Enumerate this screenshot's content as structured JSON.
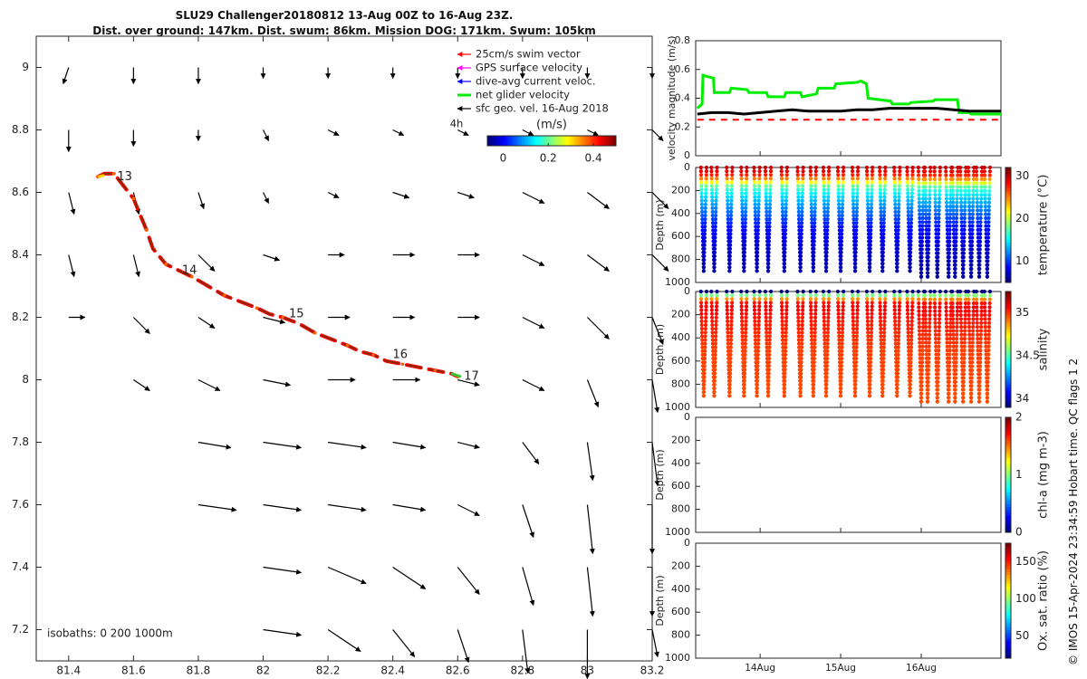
{
  "title": {
    "line1": "SLU29 Challenger20180812 13-Aug 00Z to 16-Aug 23Z.",
    "line2": "Dist. over ground: 147km. Dist. swum: 86km. Mission DOG: 171km. Swum: 105km"
  },
  "credit": "© IMOS 15-Apr-2024 23:34:59 Hobart time. QC flags 1 2",
  "chart_data": [
    {
      "type": "scatter",
      "name": "map",
      "xlim": [
        81.3,
        83.2
      ],
      "ylim": [
        7.1,
        9.1
      ],
      "xticks": [
        81.4,
        81.6,
        81.8,
        82,
        82.2,
        82.4,
        82.6,
        82.8,
        83,
        83.2
      ],
      "xtick_labels": [
        "81.4",
        "81.6",
        "81.8",
        "82",
        "82.2",
        "82.4",
        "82.6",
        "82.8",
        "83",
        "83.2"
      ],
      "yticks": [
        7.2,
        7.4,
        7.6,
        7.8,
        8,
        8.2,
        8.4,
        8.6,
        8.8,
        9
      ],
      "ytick_labels": [
        "7.2",
        "7.4",
        "7.6",
        "7.8",
        "8",
        "8.2",
        "8.4",
        "8.6",
        "8.8",
        "9"
      ],
      "legend": {
        "position": "top-right",
        "entries": [
          {
            "label": "25cm/s swim vector",
            "color": "#ff0000"
          },
          {
            "label": "GPS surface velocity",
            "color": "#ff00ff"
          },
          {
            "label": "dive-avg current veloc.",
            "color": "#0000ff"
          },
          {
            "label": "net glider velocity",
            "color": "#00ee00"
          },
          {
            "label": "sfc geo. vel. 16-Aug 2018",
            "color": "#000000"
          }
        ],
        "scale_note": "4h"
      },
      "colorbar": {
        "label": "(m/s)",
        "ticks": [
          0,
          0.2,
          0.4
        ],
        "tick_labels": [
          "0",
          "0.2",
          "0.4"
        ],
        "range": [
          -0.07,
          0.5
        ]
      },
      "isobaths_label": "isobaths: 0   200  1000m",
      "track": {
        "lon": [
          81.49,
          81.51,
          81.54,
          81.57,
          81.6,
          81.62,
          81.64,
          81.66,
          81.7,
          81.74,
          81.78,
          81.83,
          81.88,
          81.93,
          81.98,
          82.02,
          82.06,
          82.11,
          82.16,
          82.21,
          82.26,
          82.3,
          82.34,
          82.38,
          82.43,
          82.48,
          82.53,
          82.58,
          82.6
        ],
        "lat": [
          8.65,
          8.66,
          8.66,
          8.62,
          8.58,
          8.53,
          8.48,
          8.42,
          8.37,
          8.35,
          8.33,
          8.3,
          8.27,
          8.25,
          8.23,
          8.21,
          8.2,
          8.18,
          8.15,
          8.13,
          8.11,
          8.09,
          8.08,
          8.06,
          8.05,
          8.04,
          8.03,
          8.02,
          8.01
        ]
      },
      "day_markers": [
        {
          "label": "13",
          "lon": 81.53,
          "lat": 8.65
        },
        {
          "label": "14",
          "lon": 81.73,
          "lat": 8.35
        },
        {
          "label": "15",
          "lon": 82.06,
          "lat": 8.21
        },
        {
          "label": "16",
          "lon": 82.38,
          "lat": 8.08
        },
        {
          "label": "17",
          "lon": 82.6,
          "lat": 8.01
        }
      ],
      "current_vectors": {
        "lons": [
          81.4,
          81.6,
          81.8,
          82,
          82.2,
          82.4,
          82.6,
          82.8,
          83,
          83.2
        ],
        "lats": [
          7.2,
          7.4,
          7.6,
          7.8,
          8,
          8.2,
          8.4,
          8.6,
          8.8,
          9
        ],
        "rows": [
          {
            "lat": 9.0,
            "u": [
              -0.01,
              0.0,
              0.0,
              0.0,
              0.0,
              0.0,
              0.0,
              0.0,
              0.0,
              0.0
            ],
            "v": [
              -0.03,
              -0.03,
              -0.03,
              -0.02,
              -0.02,
              -0.02,
              -0.02,
              -0.02,
              -0.02,
              -0.02
            ]
          },
          {
            "lat": 8.8,
            "u": [
              0.0,
              0.0,
              0.0,
              0.01,
              0.02,
              0.02,
              0.02,
              0.02,
              0.02,
              0.02
            ],
            "v": [
              -0.04,
              -0.03,
              -0.02,
              -0.02,
              -0.01,
              -0.01,
              -0.01,
              -0.01,
              -0.01,
              -0.02
            ]
          },
          {
            "lat": 8.6,
            "u": [
              0.01,
              0.01,
              0.01,
              0.01,
              0.02,
              0.03,
              0.03,
              0.04,
              0.04,
              0.03
            ],
            "v": [
              -0.04,
              -0.04,
              -0.03,
              -0.02,
              -0.01,
              -0.01,
              -0.01,
              -0.02,
              -0.03,
              -0.03
            ]
          },
          {
            "lat": 8.4,
            "u": [
              0.01,
              0.01,
              0.03,
              0.03,
              0.03,
              0.04,
              0.04,
              0.04,
              0.04,
              0.03
            ],
            "v": [
              -0.04,
              -0.04,
              -0.03,
              -0.01,
              0.0,
              0.0,
              0.0,
              -0.02,
              -0.03,
              -0.03
            ]
          },
          {
            "lat": 8.2,
            "u": [
              0.03,
              0.03,
              0.03,
              0.04,
              0.04,
              0.04,
              0.04,
              0.04,
              0.04,
              0.02
            ],
            "v": [
              0.0,
              -0.03,
              -0.02,
              -0.01,
              0.0,
              0.0,
              0.0,
              -0.02,
              -0.04,
              -0.05
            ]
          },
          {
            "lat": 8.0,
            "u": [
              0.0,
              0.03,
              0.04,
              0.05,
              0.05,
              0.05,
              0.04,
              0.04,
              0.02,
              0.01
            ],
            "v": [
              0.0,
              -0.02,
              -0.02,
              -0.01,
              0.0,
              0.0,
              -0.01,
              -0.02,
              -0.05,
              -0.06
            ]
          },
          {
            "lat": 7.8,
            "u": [
              0.0,
              0.0,
              0.06,
              0.07,
              0.07,
              0.06,
              0.04,
              0.03,
              0.01,
              0.01
            ],
            "v": [
              0.0,
              0.0,
              -0.01,
              -0.01,
              -0.01,
              -0.01,
              -0.01,
              -0.04,
              -0.07,
              -0.08
            ]
          },
          {
            "lat": 7.6,
            "u": [
              0.0,
              0.0,
              0.07,
              0.07,
              0.07,
              0.06,
              0.04,
              0.02,
              0.01,
              0.0
            ],
            "v": [
              0.0,
              0.0,
              -0.01,
              -0.01,
              -0.01,
              -0.01,
              -0.02,
              -0.06,
              -0.09,
              -0.09
            ]
          },
          {
            "lat": 7.4,
            "u": [
              0.0,
              0.0,
              0.0,
              0.07,
              0.07,
              0.06,
              0.04,
              0.02,
              0.01,
              0.0
            ],
            "v": [
              0.0,
              0.0,
              0.0,
              -0.01,
              -0.03,
              -0.04,
              -0.05,
              -0.07,
              -0.09,
              -0.09
            ]
          },
          {
            "lat": 7.2,
            "u": [
              0.0,
              0.0,
              0.0,
              0.07,
              0.06,
              0.04,
              0.02,
              0.01,
              0.0,
              0.01
            ],
            "v": [
              0.0,
              0.0,
              0.0,
              -0.01,
              -0.04,
              -0.05,
              -0.06,
              -0.08,
              -0.09,
              -0.05
            ]
          }
        ]
      }
    },
    {
      "type": "line",
      "name": "velocity",
      "ylabel": "velocity magnitude (m/s)",
      "ylim": [
        0,
        0.8
      ],
      "yticks": [
        0,
        0.2,
        0.4,
        0.6,
        0.8
      ],
      "ytick_labels": [
        "0",
        "0.2",
        "0.4",
        "0.6",
        "0.8"
      ],
      "xlim": [
        13.2,
        16.99
      ],
      "xticks": [
        14,
        15,
        16
      ],
      "xtick_labels": [
        "14Aug",
        "15Aug",
        "16Aug"
      ],
      "series": [
        {
          "name": "net glider velocity",
          "color": "#00ee00",
          "x": [
            13.22,
            13.28,
            13.29,
            13.35,
            13.42,
            13.43,
            13.62,
            13.64,
            13.84,
            13.86,
            14.08,
            14.1,
            14.3,
            14.32,
            14.5,
            14.52,
            14.7,
            14.72,
            14.92,
            14.94,
            15.2,
            15.25,
            15.32,
            15.34,
            15.62,
            15.64,
            15.85,
            15.87,
            16.15,
            16.17,
            16.45,
            16.47,
            16.6,
            16.62,
            16.99
          ],
          "y": [
            0.33,
            0.36,
            0.56,
            0.55,
            0.54,
            0.44,
            0.44,
            0.47,
            0.46,
            0.44,
            0.44,
            0.41,
            0.41,
            0.44,
            0.44,
            0.41,
            0.43,
            0.47,
            0.47,
            0.5,
            0.51,
            0.52,
            0.5,
            0.4,
            0.38,
            0.36,
            0.36,
            0.37,
            0.38,
            0.39,
            0.39,
            0.3,
            0.3,
            0.29,
            0.29
          ]
        },
        {
          "name": "dive-avg current",
          "color": "#000000",
          "x": [
            13.22,
            13.4,
            13.6,
            13.8,
            14.0,
            14.2,
            14.4,
            14.6,
            14.8,
            15.0,
            15.2,
            15.4,
            15.6,
            15.8,
            16.0,
            16.2,
            16.4,
            16.6,
            16.8,
            16.99
          ],
          "y": [
            0.29,
            0.3,
            0.3,
            0.29,
            0.3,
            0.31,
            0.32,
            0.31,
            0.31,
            0.31,
            0.32,
            0.32,
            0.33,
            0.33,
            0.33,
            0.33,
            0.32,
            0.31,
            0.31,
            0.31
          ]
        },
        {
          "name": "25cm/s swim",
          "color": "#ff0000",
          "dashed": true,
          "x": [
            13.22,
            16.99
          ],
          "y": [
            0.25,
            0.25
          ]
        }
      ]
    },
    {
      "type": "scatter",
      "name": "temperature",
      "ylabel": "Depth (m)",
      "colorbar_label": "temperature (°C)",
      "ylim": [
        1000,
        0
      ],
      "yticks": [
        0,
        200,
        400,
        600,
        800,
        1000
      ],
      "ytick_labels": [
        "0",
        "200",
        "400",
        "600",
        "800",
        "1000"
      ],
      "colorbar_ticks": [
        10,
        20,
        30
      ],
      "colorbar_tick_labels": [
        "10",
        "20",
        "30"
      ],
      "colorbar_range": [
        5,
        32
      ],
      "profile_times": [
        13.3,
        13.43,
        13.62,
        13.8,
        13.96,
        14.1,
        14.3,
        14.5,
        14.66,
        14.82,
        15.0,
        15.18,
        15.36,
        15.52,
        15.7,
        15.86,
        16.0,
        16.08,
        16.2,
        16.34,
        16.42,
        16.52,
        16.62,
        16.72,
        16.82
      ],
      "max_depths": [
        900,
        900,
        900,
        900,
        900,
        900,
        900,
        900,
        900,
        900,
        900,
        900,
        900,
        900,
        900,
        900,
        950,
        950,
        950,
        950,
        950,
        950,
        950,
        950,
        950
      ],
      "profile": {
        "depth": [
          0,
          40,
          80,
          120,
          160,
          220,
          300,
          400,
          500,
          600,
          700,
          800,
          950
        ],
        "value": [
          30,
          29,
          27,
          23,
          18,
          15,
          13,
          11,
          9,
          8,
          7,
          6.5,
          6
        ]
      }
    },
    {
      "type": "scatter",
      "name": "salinity",
      "ylabel": "Depth (m)",
      "colorbar_label": "salinity",
      "ylim": [
        1000,
        0
      ],
      "yticks": [
        0,
        200,
        400,
        600,
        800,
        1000
      ],
      "ytick_labels": [
        "0",
        "200",
        "400",
        "600",
        "800",
        "1000"
      ],
      "colorbar_ticks": [
        34,
        34.5,
        35
      ],
      "colorbar_tick_labels": [
        "34",
        "34.5",
        "35"
      ],
      "colorbar_range": [
        33.9,
        35.25
      ],
      "profile_times": [
        13.3,
        13.43,
        13.62,
        13.8,
        13.96,
        14.1,
        14.3,
        14.5,
        14.66,
        14.82,
        15.0,
        15.18,
        15.36,
        15.52,
        15.7,
        15.86,
        16.0,
        16.08,
        16.2,
        16.34,
        16.42,
        16.52,
        16.62,
        16.72,
        16.82
      ],
      "max_depths": [
        900,
        900,
        900,
        900,
        900,
        900,
        900,
        900,
        900,
        900,
        900,
        900,
        900,
        900,
        900,
        900,
        950,
        950,
        950,
        950,
        950,
        950,
        950,
        950,
        950
      ],
      "profile": {
        "depth": [
          0,
          20,
          50,
          90,
          140,
          250,
          500,
          950
        ],
        "value": [
          33.9,
          34.4,
          34.8,
          35.05,
          35.1,
          35.05,
          35.0,
          34.98
        ]
      }
    },
    {
      "type": "scatter",
      "name": "chl-a",
      "ylabel": "Depth (m)",
      "colorbar_label": "chl-a (mg m-3)",
      "ylim": [
        1000,
        0
      ],
      "yticks": [
        0,
        200,
        400,
        600,
        800,
        1000
      ],
      "ytick_labels": [
        "0",
        "200",
        "400",
        "600",
        "800",
        "1000"
      ],
      "colorbar_ticks": [
        0,
        1,
        2
      ],
      "colorbar_tick_labels": [
        "0",
        "1",
        "2"
      ],
      "colorbar_range": [
        0,
        2
      ]
    },
    {
      "type": "scatter",
      "name": "oxygen",
      "ylabel": "Depth (m)",
      "colorbar_label": "Ox. sat. ratio (%)",
      "ylim": [
        1000,
        0
      ],
      "yticks": [
        0,
        200,
        400,
        600,
        800,
        1000
      ],
      "ytick_labels": [
        "0",
        "200",
        "400",
        "600",
        "800",
        "1000"
      ],
      "colorbar_ticks": [
        50,
        100,
        150
      ],
      "colorbar_tick_labels": [
        "50",
        "100",
        "150"
      ],
      "colorbar_range": [
        20,
        175
      ],
      "xticks": [
        14,
        15,
        16
      ],
      "xtick_labels": [
        "14Aug",
        "15Aug",
        "16Aug"
      ]
    }
  ]
}
